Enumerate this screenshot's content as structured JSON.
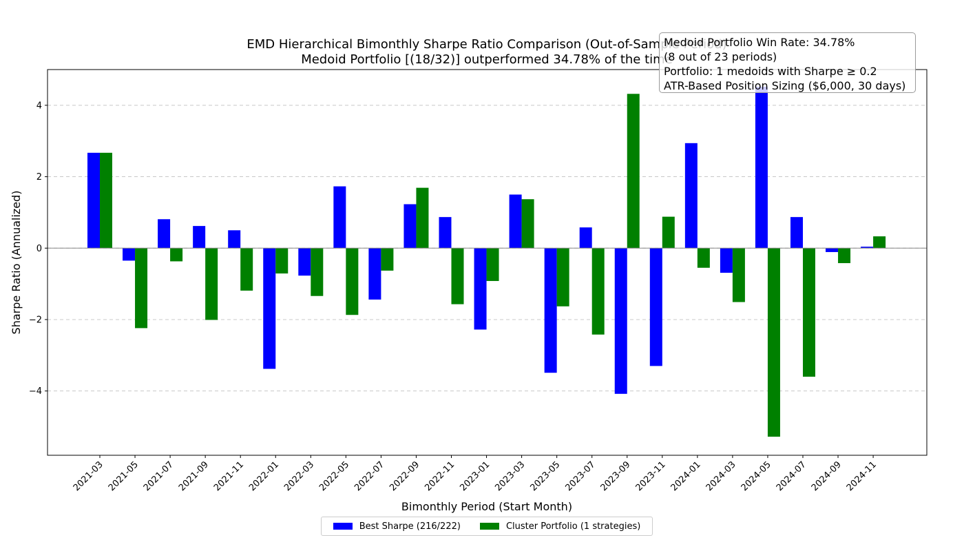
{
  "chart_data": {
    "type": "bar",
    "title_line1": "EMD Hierarchical Bimonthly Sharpe Ratio Comparison (Out-of-Sample Period)",
    "title_line2": "Medoid Portfolio [(18/32)] outperformed 34.78% of the time",
    "xlabel": "Bimonthly Period (Start Month)",
    "ylabel": "Sharpe Ratio (Annualized)",
    "ylim": [
      -5.8,
      5.0
    ],
    "yticks": [
      -4,
      -2,
      0,
      2,
      4
    ],
    "grid": "horizontal dashed",
    "legend_position": "bottom-center",
    "categories": [
      "2021-03",
      "2021-05",
      "2021-07",
      "2021-09",
      "2021-11",
      "2022-01",
      "2022-03",
      "2022-05",
      "2022-07",
      "2022-09",
      "2022-11",
      "2023-01",
      "2023-03",
      "2023-05",
      "2023-07",
      "2023-09",
      "2023-11",
      "2024-01",
      "2024-03",
      "2024-05",
      "2024-07",
      "2024-09",
      "2024-11"
    ],
    "series": [
      {
        "name": "Best Sharpe (216/222)",
        "color": "#0000ff",
        "values": [
          2.67,
          -0.35,
          0.81,
          0.62,
          0.5,
          -3.38,
          -0.77,
          1.73,
          -1.44,
          1.23,
          0.87,
          -2.28,
          1.5,
          -3.49,
          0.58,
          -4.08,
          -3.3,
          2.94,
          -0.69,
          4.52,
          0.87,
          -0.11,
          0.04
        ]
      },
      {
        "name": "Cluster Portfolio (1 strategies)",
        "color": "#008000",
        "values": [
          2.67,
          -2.24,
          -0.37,
          -2.01,
          -1.19,
          -0.71,
          -1.34,
          -1.87,
          -0.63,
          1.69,
          -1.57,
          -0.92,
          1.37,
          -1.63,
          -2.42,
          4.32,
          0.88,
          -0.55,
          -1.51,
          -5.28,
          -3.6,
          -0.42,
          0.33
        ]
      }
    ],
    "annotation": [
      "Medoid Portfolio Win Rate: 34.78%",
      "(8 out of 23 periods)",
      "Portfolio: 1 medoids with Sharpe ≥ 0.2",
      "ATR-Based Position Sizing ($6,000, 30 days)"
    ]
  }
}
